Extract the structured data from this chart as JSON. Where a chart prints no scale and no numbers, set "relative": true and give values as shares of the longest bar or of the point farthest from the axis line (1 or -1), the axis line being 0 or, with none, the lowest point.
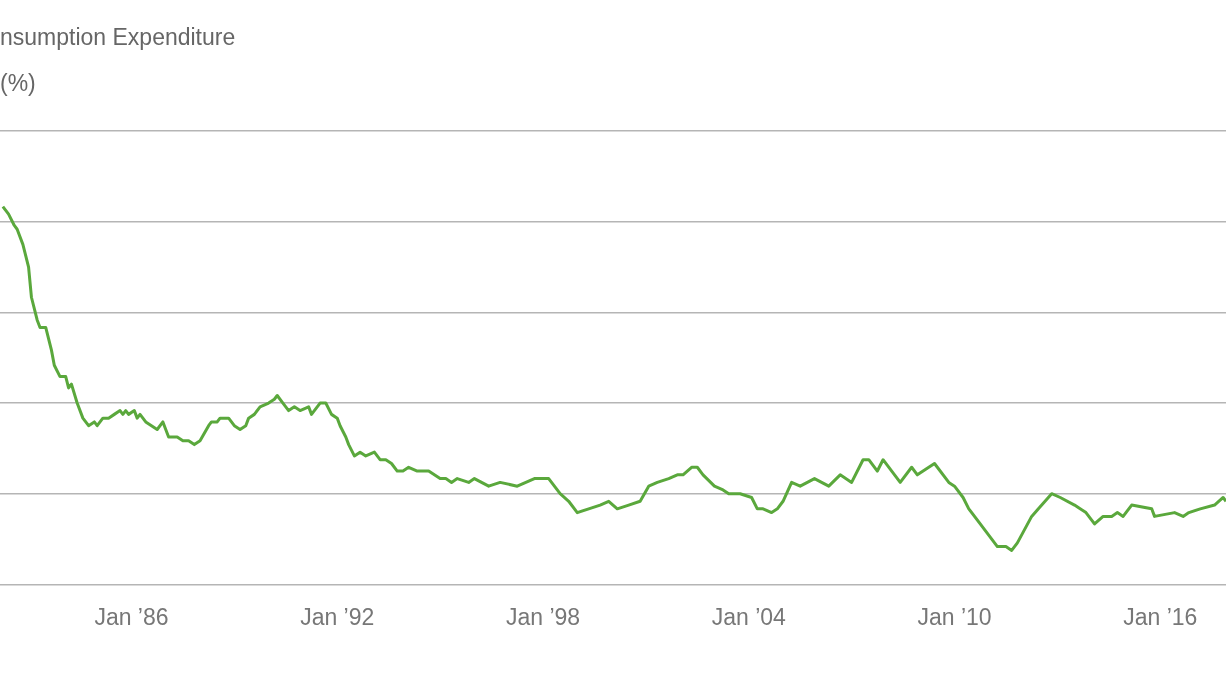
{
  "chart_data": {
    "type": "line",
    "title": "nsumption Expenditure",
    "subtitle": "(%)",
    "relative": true,
    "grid": "y",
    "xlim": [
      "1982-03",
      "2017-12"
    ],
    "xticks": [
      {
        "value": "1986-01",
        "label": "Jan ’86"
      },
      {
        "value": "1992-01",
        "label": "Jan ’92"
      },
      {
        "value": "1998-01",
        "label": "Jan ’98"
      },
      {
        "value": "2004-01",
        "label": "Jan ’04"
      },
      {
        "value": "2010-01",
        "label": "Jan ’10"
      },
      {
        "value": "2016-01",
        "label": "Jan ’16"
      }
    ],
    "x": [
      "1982-04",
      "1982-06",
      "1982-08",
      "1982-09",
      "1982-11",
      "1983-01",
      "1983-02",
      "1983-04",
      "1983-05",
      "1983-07",
      "1983-09",
      "1983-10",
      "1983-12",
      "1984-02",
      "1984-03",
      "1984-04",
      "1984-06",
      "1984-08",
      "1984-09",
      "1984-10",
      "1984-12",
      "1985-01",
      "1985-03",
      "1985-05",
      "1985-07",
      "1985-09",
      "1985-10",
      "1985-11",
      "1985-12",
      "1986-02",
      "1986-03",
      "1986-04",
      "1986-06",
      "1986-08",
      "1986-10",
      "1986-12",
      "1987-02",
      "1987-05",
      "1987-07",
      "1987-09",
      "1987-11",
      "1988-01",
      "1988-04",
      "1988-05",
      "1988-07",
      "1988-08",
      "1988-11",
      "1989-01",
      "1989-03",
      "1989-05",
      "1989-06",
      "1989-08",
      "1989-10",
      "1990-01",
      "1990-03",
      "1990-04",
      "1990-06",
      "1990-08",
      "1990-10",
      "1990-12",
      "1991-03",
      "1991-04",
      "1991-06",
      "1991-07",
      "1991-09",
      "1991-11",
      "1992-01",
      "1992-02",
      "1992-04",
      "1992-05",
      "1992-07",
      "1992-09",
      "1992-11",
      "1993-02",
      "1993-04",
      "1993-06",
      "1993-08",
      "1993-10",
      "1993-12",
      "1994-02",
      "1994-05",
      "1994-09",
      "1995-01",
      "1995-03",
      "1995-05",
      "1995-07",
      "1995-11",
      "1996-01",
      "1996-06",
      "1996-10",
      "1997-04",
      "1997-10",
      "1998-03",
      "1998-07",
      "1998-10",
      "1999-01",
      "1999-05",
      "1999-09",
      "1999-12",
      "2000-03",
      "2000-07",
      "2000-11",
      "2001-02",
      "2001-05",
      "2001-09",
      "2001-12",
      "2002-02",
      "2002-05",
      "2002-07",
      "2002-09",
      "2003-01",
      "2003-04",
      "2003-06",
      "2003-10",
      "2004-02",
      "2004-04",
      "2004-06",
      "2004-09",
      "2004-11",
      "2005-01",
      "2005-04",
      "2005-07",
      "2005-12",
      "2006-05",
      "2006-09",
      "2007-01",
      "2007-05",
      "2007-07",
      "2007-10",
      "2007-12",
      "2008-06",
      "2008-10",
      "2008-12",
      "2009-06",
      "2009-11",
      "2010-01",
      "2010-04",
      "2010-06",
      "2010-10",
      "2011-04",
      "2011-07",
      "2011-09",
      "2011-11",
      "2012-04",
      "2012-11",
      "2013-02",
      "2013-07",
      "2013-11",
      "2014-02",
      "2014-05",
      "2014-08",
      "2014-10",
      "2014-12",
      "2015-03",
      "2015-10",
      "2015-11",
      "2016-06",
      "2016-09",
      "2016-11",
      "2017-03",
      "2017-08",
      "2017-11",
      "2017-12"
    ],
    "series": [
      {
        "color": "#5aa83c",
        "values": [
          1.0,
          0.98,
          0.95,
          0.94,
          0.9,
          0.84,
          0.76,
          0.7,
          0.68,
          0.68,
          0.62,
          0.58,
          0.55,
          0.55,
          0.52,
          0.53,
          0.48,
          0.44,
          0.43,
          0.42,
          0.43,
          0.42,
          0.44,
          0.44,
          0.45,
          0.46,
          0.45,
          0.46,
          0.45,
          0.46,
          0.44,
          0.45,
          0.43,
          0.42,
          0.41,
          0.43,
          0.39,
          0.39,
          0.38,
          0.38,
          0.37,
          0.38,
          0.42,
          0.43,
          0.43,
          0.44,
          0.44,
          0.42,
          0.41,
          0.42,
          0.44,
          0.45,
          0.47,
          0.48,
          0.49,
          0.5,
          0.48,
          0.46,
          0.47,
          0.46,
          0.47,
          0.45,
          0.47,
          0.48,
          0.48,
          0.45,
          0.44,
          0.42,
          0.39,
          0.37,
          0.34,
          0.35,
          0.34,
          0.35,
          0.33,
          0.33,
          0.32,
          0.3,
          0.3,
          0.31,
          0.3,
          0.3,
          0.28,
          0.28,
          0.27,
          0.28,
          0.27,
          0.28,
          0.26,
          0.27,
          0.26,
          0.28,
          0.28,
          0.24,
          0.22,
          0.19,
          0.2,
          0.21,
          0.22,
          0.2,
          0.21,
          0.22,
          0.26,
          0.27,
          0.28,
          0.29,
          0.29,
          0.31,
          0.31,
          0.29,
          0.26,
          0.25,
          0.24,
          0.24,
          0.23,
          0.2,
          0.2,
          0.19,
          0.2,
          0.22,
          0.27,
          0.26,
          0.28,
          0.26,
          0.29,
          0.27,
          0.33,
          0.33,
          0.3,
          0.33,
          0.27,
          0.31,
          0.29,
          0.32,
          0.27,
          0.26,
          0.23,
          0.2,
          0.16,
          0.1,
          0.1,
          0.09,
          0.11,
          0.18,
          0.24,
          0.23,
          0.21,
          0.19,
          0.16,
          0.18,
          0.18,
          0.19,
          0.18,
          0.21,
          0.2,
          0.18,
          0.19,
          0.18,
          0.19,
          0.2,
          0.21,
          0.23,
          0.22
        ]
      }
    ]
  }
}
